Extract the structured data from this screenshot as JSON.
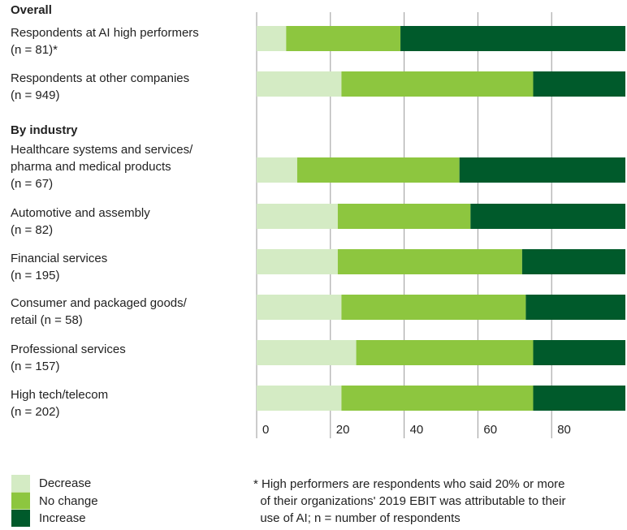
{
  "chart_data": {
    "type": "stacked-bar-horizontal",
    "group_labels": [
      "Overall",
      "By industry"
    ],
    "categories": [
      "Respondents at AI high performers\n(n = 81)*",
      "Respondents at other companies\n(n = 949)",
      "Healthcare systems and services/\npharma and medical products\n(n = 67)",
      "Automotive and assembly\n(n = 82)",
      "Financial services\n(n = 195)",
      "Consumer and packaged goods/\nretail (n = 58)",
      "Professional services\n(n = 157)",
      "High tech/telecom\n(n = 202)"
    ],
    "series": [
      {
        "name": "Decrease",
        "color": "#d4ebc4",
        "values": [
          8,
          23,
          11,
          22,
          22,
          23,
          27,
          23
        ]
      },
      {
        "name": "No change",
        "color": "#8dc63f",
        "values": [
          31,
          52,
          44,
          36,
          50,
          50,
          48,
          52
        ]
      },
      {
        "name": "Increase",
        "color": "#005a2b",
        "values": [
          61,
          25,
          45,
          42,
          28,
          27,
          25,
          25
        ]
      }
    ],
    "xlim": [
      0,
      100
    ],
    "xticks": [
      0,
      20,
      40,
      60,
      80
    ],
    "grid": true,
    "footnote": "* High performers are respondents who said 20% or more\n  of their organizations' 2019 EBIT was attributable to their\n  use of AI; n = number of respondents"
  }
}
